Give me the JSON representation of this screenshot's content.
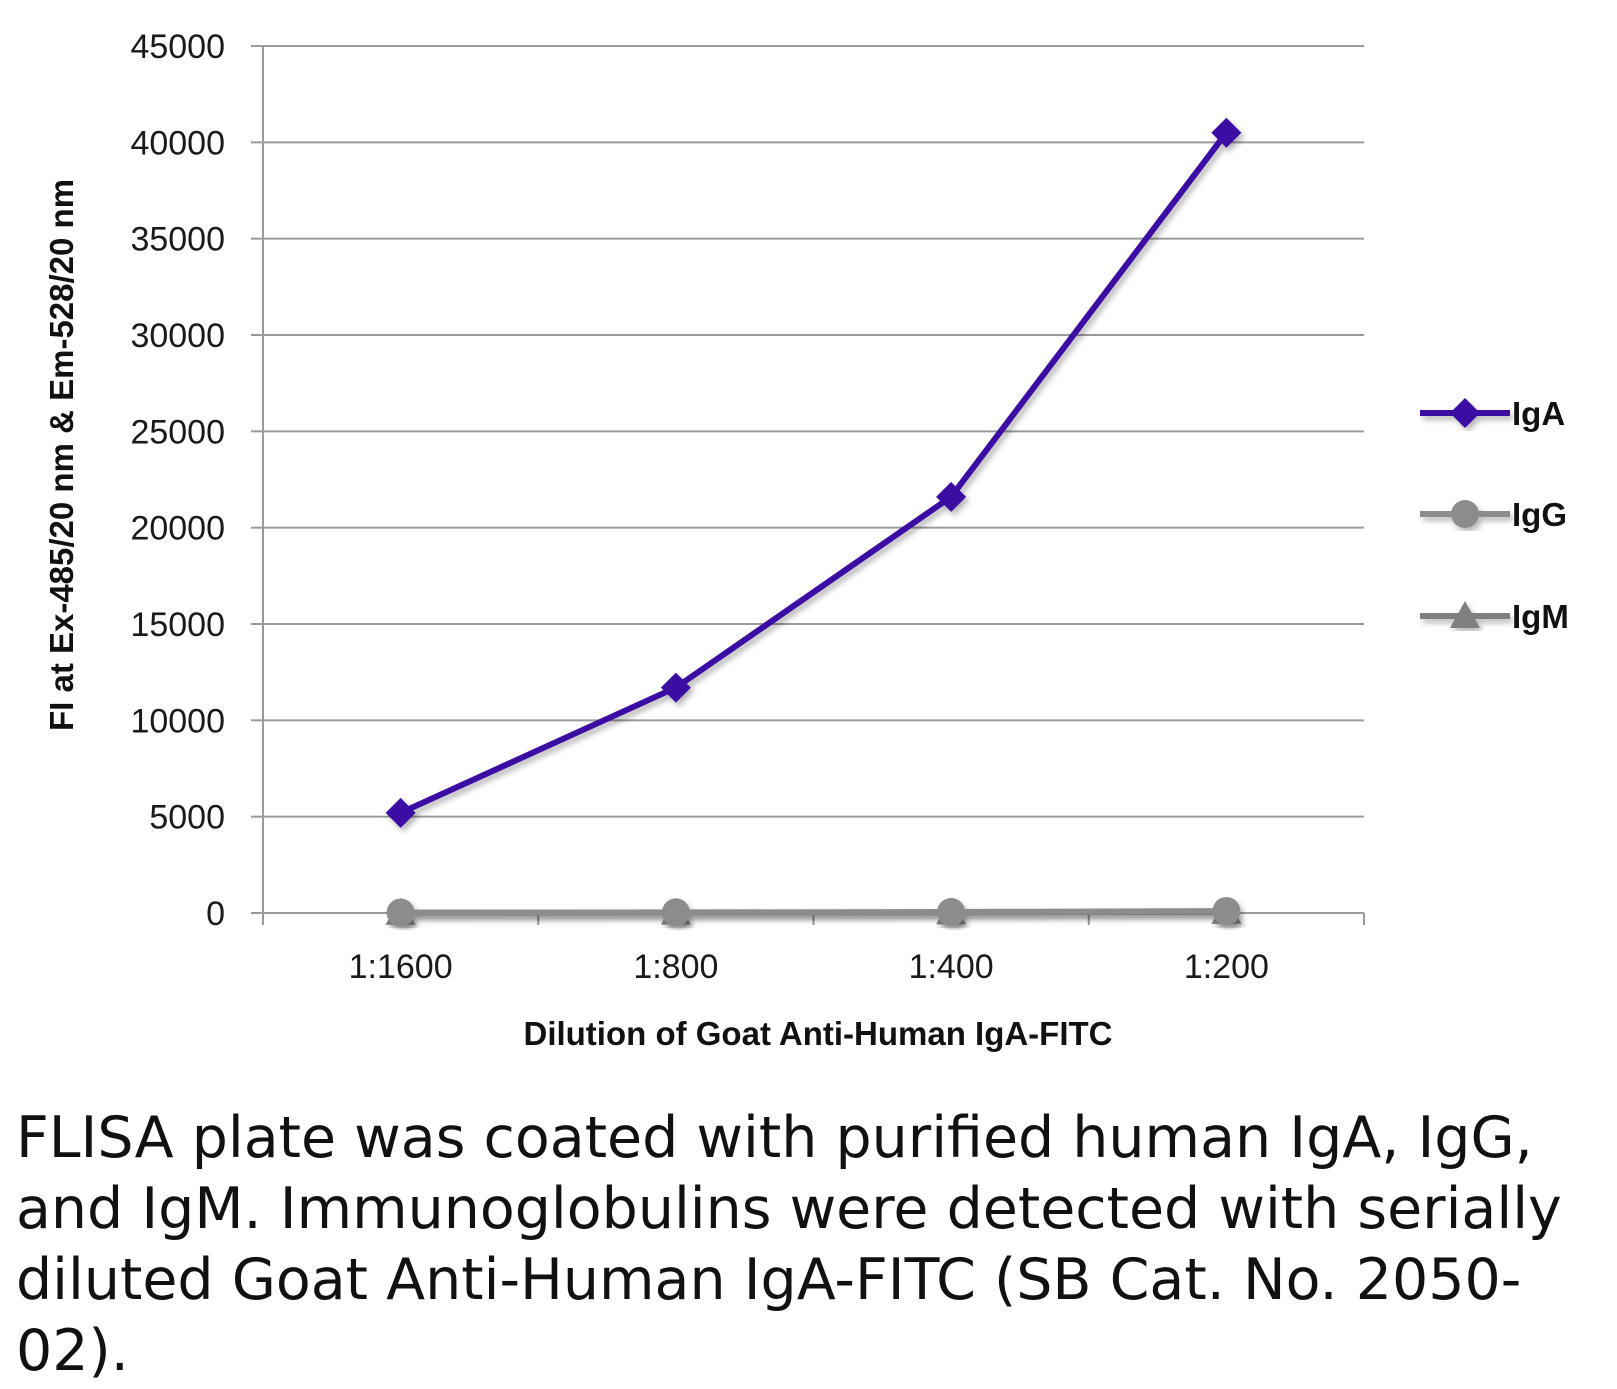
{
  "chart_data": {
    "type": "line",
    "categories": [
      "1:1600",
      "1:800",
      "1:400",
      "1:200"
    ],
    "xlabel": "Dilution of Goat Anti-Human IgA-FITC",
    "ylabel": "FI at Ex-485/20 nm & Em-528/20 nm",
    "ylim": [
      0,
      45000
    ],
    "yticks": [
      0,
      5000,
      10000,
      15000,
      20000,
      25000,
      30000,
      35000,
      40000,
      45000
    ],
    "grid": true,
    "legend_position": "right",
    "series": [
      {
        "name": "IgA",
        "values": [
          5200,
          11700,
          21600,
          40500
        ],
        "color": "#3a0ca3",
        "marker": "diamond"
      },
      {
        "name": "IgG",
        "values": [
          20,
          30,
          50,
          100
        ],
        "color": "#8c8c8c",
        "marker": "circle"
      },
      {
        "name": "IgM",
        "values": [
          10,
          20,
          30,
          60
        ],
        "color": "#7f7f7f",
        "marker": "triangle"
      }
    ]
  },
  "caption": "FLISA plate was coated with purified human IgA, IgG, and IgM.  Immunoglobulins were detected with serially diluted Goat Anti-Human IgA-FITC (SB Cat. No. 2050-02)."
}
